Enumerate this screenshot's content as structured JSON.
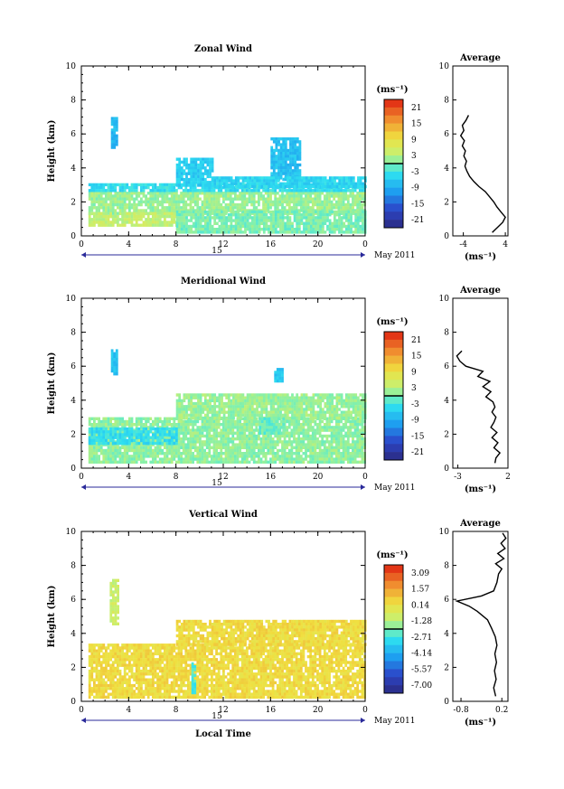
{
  "chart_data": [
    {
      "type": "heatmap",
      "title": "Zonal Wind",
      "ylabel": "Height (km)",
      "xlabel": "",
      "xlim": [
        0,
        24
      ],
      "ylim": [
        0,
        10
      ],
      "xticks": [
        "0",
        "4",
        "8",
        "12",
        "16",
        "20",
        "0"
      ],
      "yticks": [
        "0",
        "2",
        "4",
        "6",
        "8",
        "10"
      ],
      "day_label": "15",
      "month_label": "May 2011",
      "colorbar": {
        "unit": "(ms⁻¹)",
        "ticks": [
          "21",
          "15",
          "9",
          "3",
          "-3",
          "-9",
          "-15",
          "-21"
        ],
        "range": [
          -24,
          24
        ]
      },
      "regions": [
        {
          "x": [
            0.6,
            24
          ],
          "y": [
            1.4,
            2.6
          ],
          "value": 1.5
        },
        {
          "x": [
            0.6,
            24
          ],
          "y": [
            2.6,
            3.1
          ],
          "value": -4
        },
        {
          "x": [
            2.5,
            3.0
          ],
          "y": [
            5.2,
            7.0
          ],
          "value": -8
        },
        {
          "x": [
            8.0,
            11.0
          ],
          "y": [
            3.0,
            4.6
          ],
          "value": -6
        },
        {
          "x": [
            16.0,
            18.5
          ],
          "y": [
            3.3,
            5.8
          ],
          "value": -7
        },
        {
          "x": [
            11.0,
            24
          ],
          "y": [
            2.9,
            3.5
          ],
          "value": -5
        },
        {
          "x": [
            0.6,
            8.0
          ],
          "y": [
            0.6,
            1.4
          ],
          "value": 4
        },
        {
          "x": [
            8.0,
            24
          ],
          "y": [
            0.2,
            1.5
          ],
          "value": 0
        }
      ],
      "average_profile": {
        "title": "Average",
        "xlabel": "(ms⁻¹)",
        "xticks": [
          "-4",
          "4"
        ],
        "xlim": [
          -6,
          4.5
        ],
        "height": [
          0.2,
          0.5,
          0.8,
          1.1,
          1.4,
          1.7,
          2.0,
          2.3,
          2.6,
          2.9,
          3.2,
          3.5,
          3.8,
          4.1,
          4.4,
          4.7,
          5.0,
          5.3,
          5.6,
          5.9,
          6.2,
          6.5,
          6.8,
          7.1
        ],
        "values": [
          1.5,
          2.5,
          3.5,
          4.0,
          3.2,
          2.4,
          1.8,
          1.0,
          0.2,
          -1.0,
          -2.0,
          -2.8,
          -3.3,
          -3.7,
          -3.4,
          -3.9,
          -3.6,
          -4.2,
          -3.8,
          -4.5,
          -3.9,
          -4.2,
          -3.5,
          -3.0
        ]
      }
    },
    {
      "type": "heatmap",
      "title": "Meridional Wind",
      "ylabel": "Height (km)",
      "xlabel": "",
      "xlim": [
        0,
        24
      ],
      "ylim": [
        0,
        10
      ],
      "xticks": [
        "0",
        "4",
        "8",
        "12",
        "16",
        "20",
        "0"
      ],
      "yticks": [
        "0",
        "2",
        "4",
        "6",
        "8",
        "10"
      ],
      "day_label": "15",
      "month_label": "May 2011",
      "colorbar": {
        "unit": "(ms⁻¹)",
        "ticks": [
          "21",
          "15",
          "9",
          "3",
          "-3",
          "-9",
          "-15",
          "-21"
        ],
        "range": [
          -24,
          24
        ]
      },
      "regions": [
        {
          "x": [
            0.6,
            24
          ],
          "y": [
            0.3,
            3.0
          ],
          "value": 1.0
        },
        {
          "x": [
            0.6,
            8.0
          ],
          "y": [
            1.4,
            2.4
          ],
          "value": -4
        },
        {
          "x": [
            2.5,
            3.0
          ],
          "y": [
            5.5,
            7.0
          ],
          "value": -7
        },
        {
          "x": [
            8.0,
            24
          ],
          "y": [
            3.0,
            4.4
          ],
          "value": 1.5
        },
        {
          "x": [
            16.3,
            17.0
          ],
          "y": [
            5.2,
            5.9
          ],
          "value": -6
        },
        {
          "x": [
            15.0,
            17.0
          ],
          "y": [
            2.0,
            3.0
          ],
          "value": -1
        }
      ],
      "average_profile": {
        "title": "Average",
        "xlabel": "(ms⁻¹)",
        "xticks": [
          "-3",
          "2"
        ],
        "xlim": [
          -3.5,
          2.0
        ],
        "height": [
          0.3,
          0.6,
          0.9,
          1.2,
          1.5,
          1.8,
          2.1,
          2.4,
          2.7,
          3.0,
          3.3,
          3.6,
          3.9,
          4.2,
          4.5,
          4.8,
          5.1,
          5.4,
          5.7,
          6.0,
          6.3,
          6.6,
          6.9
        ],
        "values": [
          0.7,
          0.8,
          1.2,
          0.6,
          1.0,
          0.4,
          0.9,
          0.3,
          0.6,
          0.8,
          0.4,
          0.7,
          0.5,
          -0.2,
          0.3,
          -0.5,
          0.2,
          -1.0,
          -0.5,
          -2.2,
          -2.8,
          -3.1,
          -2.6
        ]
      }
    },
    {
      "type": "heatmap",
      "title": "Vertical Wind",
      "ylabel": "Height (km)",
      "xlabel": "Local Time",
      "xlim": [
        0,
        24
      ],
      "ylim": [
        0,
        10
      ],
      "xticks": [
        "0",
        "4",
        "8",
        "12",
        "16",
        "20",
        "0"
      ],
      "yticks": [
        "0",
        "2",
        "4",
        "6",
        "8",
        "10"
      ],
      "day_label": "15",
      "month_label": "May 2011",
      "colorbar": {
        "unit": "(ms⁻¹)",
        "ticks": [
          "3.09",
          "1.57",
          "0.14",
          "-1.28",
          "-2.71",
          "-4.14",
          "-5.57",
          "-7.00"
        ],
        "range": [
          -7.7,
          3.8
        ]
      },
      "regions": [
        {
          "x": [
            0.6,
            24
          ],
          "y": [
            0.3,
            3.4
          ],
          "value": 0.4
        },
        {
          "x": [
            8.0,
            24
          ],
          "y": [
            3.4,
            4.8
          ],
          "value": 0.4
        },
        {
          "x": [
            2.4,
            3.0
          ],
          "y": [
            4.6,
            7.2
          ],
          "value": -0.8
        },
        {
          "x": [
            9.3,
            9.6
          ],
          "y": [
            0.5,
            2.3
          ],
          "value": -2.5
        }
      ],
      "average_profile": {
        "title": "Average",
        "xlabel": "(ms⁻¹)",
        "xticks": [
          "-0.8",
          "0.2"
        ],
        "xlim": [
          -1.0,
          0.35
        ],
        "height": [
          0.3,
          0.8,
          1.3,
          1.8,
          2.3,
          2.8,
          3.3,
          3.8,
          4.3,
          4.8,
          5.3,
          5.6,
          5.9,
          6.2,
          6.5,
          7.0,
          7.5,
          7.8,
          8.1,
          8.4,
          8.7,
          9.0,
          9.3,
          9.6,
          9.9
        ],
        "values": [
          0.05,
          0.0,
          0.06,
          0.02,
          0.07,
          0.03,
          0.08,
          0.04,
          -0.05,
          -0.15,
          -0.4,
          -0.6,
          -0.9,
          -0.3,
          0.0,
          0.08,
          0.12,
          0.2,
          0.05,
          0.25,
          0.1,
          0.28,
          0.18,
          0.3,
          0.22
        ]
      }
    }
  ]
}
